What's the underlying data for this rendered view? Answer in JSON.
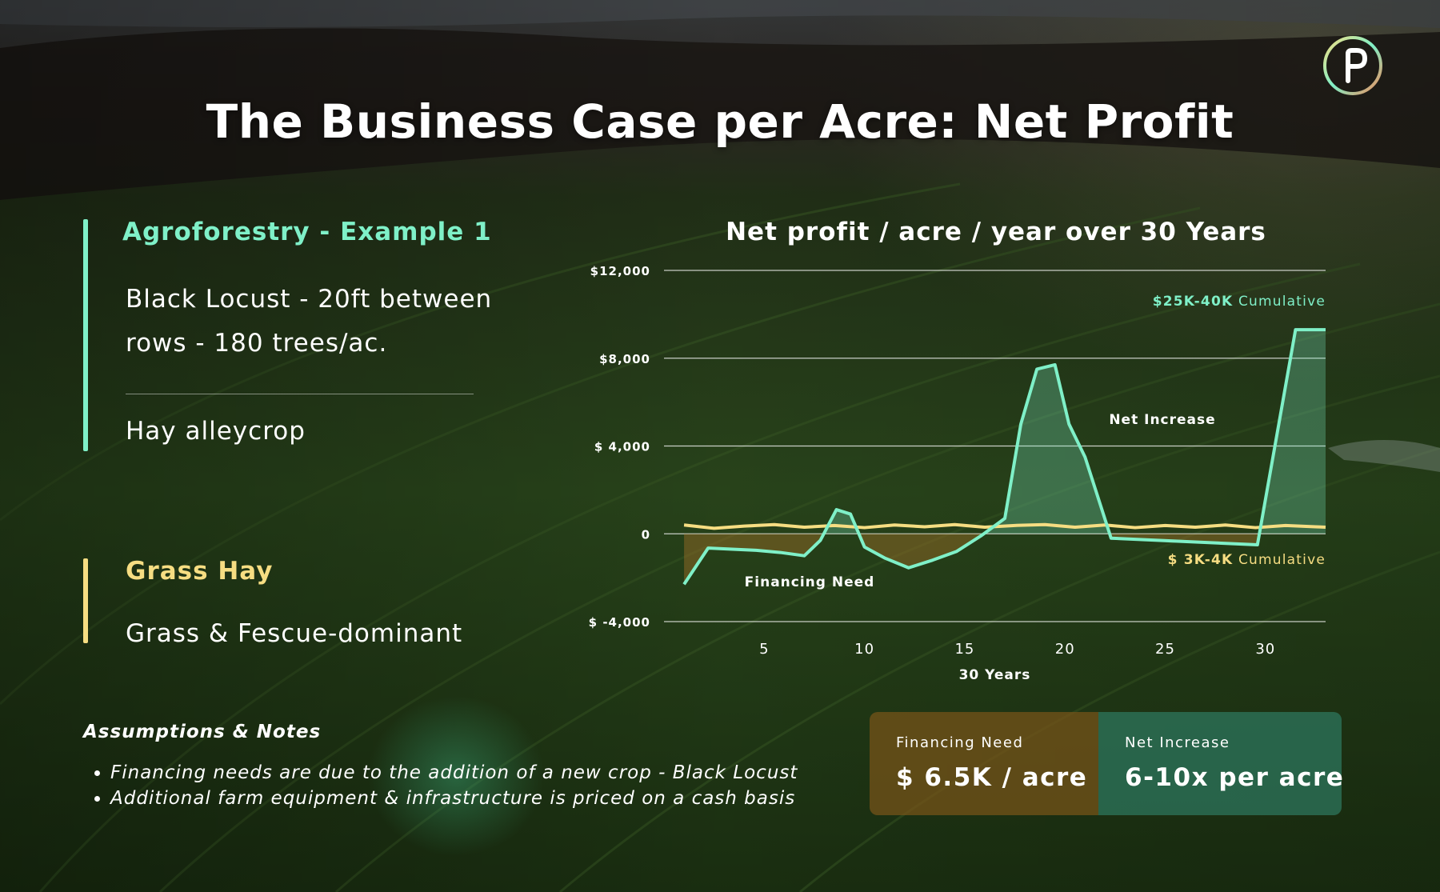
{
  "slide": {
    "title": "The Business Case per Acre: Net Profit"
  },
  "agroforestry": {
    "heading": "Agroforestry - Example 1",
    "line1": "Black Locust - 20ft between",
    "line2": "rows - 180 trees/ac.",
    "crop": "Hay alleycrop",
    "color": "#7ff0c8"
  },
  "grass_hay": {
    "heading": "Grass Hay",
    "description": "Grass & Fescue-dominant",
    "color": "#f6dd82"
  },
  "notes": {
    "heading": "Assumptions & Notes",
    "items": [
      "Financing needs are due to the addition of a new crop - Black Locust",
      "Additional farm equipment & infrastructure is priced on a cash basis"
    ]
  },
  "chart_data": {
    "type": "line",
    "title": "Net profit / acre / year over 30 Years",
    "xlabel": "30 Years",
    "ylabel": "",
    "xlim": [
      0,
      33
    ],
    "ylim": [
      -4000,
      12000
    ],
    "x_ticks": [
      5,
      10,
      15,
      20,
      25,
      30
    ],
    "y_ticks": [
      {
        "value": 12000,
        "label": "$12,000"
      },
      {
        "value": 8000,
        "label": "$8,000"
      },
      {
        "value": 4000,
        "label": "$ 4,000"
      },
      {
        "value": 0,
        "label": "0"
      },
      {
        "value": -4000,
        "label": "$ -4,000"
      }
    ],
    "grid": true,
    "series": [
      {
        "name": "Agroforestry",
        "color": "#7ff0c8",
        "x": [
          1,
          2.2,
          3.4,
          4.6,
          5.8,
          7,
          7.8,
          8.6,
          9.3,
          10,
          11,
          12.2,
          13.4,
          14.6,
          15.8,
          17,
          17.8,
          18.6,
          19.5,
          20.2,
          21,
          22.3,
          29.6,
          31.5,
          33
        ],
        "y": [
          -2300,
          -650,
          -700,
          -750,
          -850,
          -1000,
          -300,
          1100,
          900,
          -600,
          -1100,
          -1550,
          -1200,
          -800,
          -100,
          700,
          5000,
          7500,
          7700,
          5000,
          3500,
          -200,
          -500,
          9300,
          9300
        ]
      },
      {
        "name": "Grass Hay",
        "color": "#f6dd82",
        "x": [
          1,
          2.5,
          4,
          5.5,
          7,
          8.5,
          10,
          11.5,
          13,
          14.5,
          16,
          17.5,
          19,
          20.5,
          22,
          23.5,
          25,
          26.5,
          28,
          29.5,
          31,
          32.5,
          33
        ],
        "y": [
          400,
          250,
          350,
          420,
          300,
          380,
          280,
          400,
          320,
          420,
          300,
          380,
          420,
          300,
          400,
          280,
          380,
          300,
          400,
          280,
          380,
          320,
          300
        ]
      }
    ],
    "annotations": [
      {
        "text": "$25K-40K",
        "suffix": "Cumulative",
        "color": "#7ff0c8"
      },
      {
        "text": "Net Increase"
      },
      {
        "text": "Financing Need"
      },
      {
        "text": "$ 3K-4K",
        "suffix": "Cumulative",
        "color": "#f6dd82"
      }
    ]
  },
  "stats": {
    "financing": {
      "label": "Financing Need",
      "value": "$ 6.5K / acre"
    },
    "increase": {
      "label": "Net Increase",
      "value": "6-10x per acre"
    }
  }
}
